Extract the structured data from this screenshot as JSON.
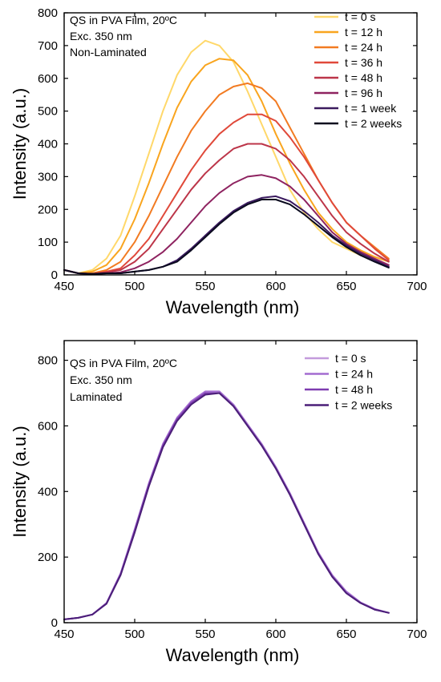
{
  "chart_data": [
    {
      "type": "line",
      "title": "",
      "xlabel": "Wavelength (nm)",
      "ylabel": "Intensity (a.u.)",
      "xlim": [
        450,
        700
      ],
      "ylim": [
        0,
        800
      ],
      "xticks": [
        "450",
        "500",
        "550",
        "600",
        "650",
        "700"
      ],
      "yticks": [
        "0",
        "100",
        "200",
        "300",
        "400",
        "500",
        "600",
        "700",
        "800"
      ],
      "annotations": [
        "QS in PVA Film, 20ºC",
        "Exc. 350 nm",
        "Non-Laminated"
      ],
      "legend_position": "top-right",
      "series": [
        {
          "name": "t = 0 s",
          "color": "#FFD86A",
          "x": [
            450,
            460,
            470,
            480,
            490,
            500,
            510,
            520,
            530,
            540,
            550,
            560,
            570,
            580,
            590,
            600,
            610,
            620,
            630,
            640,
            650,
            660,
            670,
            680
          ],
          "values": [
            15,
            5,
            15,
            50,
            120,
            240,
            370,
            500,
            610,
            680,
            715,
            700,
            650,
            560,
            460,
            360,
            260,
            190,
            140,
            100,
            80,
            60,
            45,
            30
          ]
        },
        {
          "name": "t = 12 h",
          "color": "#F9A51E",
          "x": [
            450,
            460,
            470,
            480,
            490,
            500,
            510,
            520,
            530,
            540,
            550,
            560,
            570,
            580,
            590,
            600,
            610,
            620,
            630,
            640,
            650,
            660,
            670,
            680
          ],
          "values": [
            15,
            5,
            10,
            30,
            80,
            170,
            280,
            400,
            510,
            590,
            640,
            660,
            655,
            610,
            530,
            430,
            340,
            260,
            190,
            140,
            100,
            75,
            55,
            40
          ]
        },
        {
          "name": "t = 24 h",
          "color": "#F27B22",
          "x": [
            450,
            460,
            470,
            480,
            490,
            500,
            510,
            520,
            530,
            540,
            550,
            560,
            570,
            580,
            590,
            600,
            610,
            620,
            630,
            640,
            650,
            660,
            670,
            680
          ],
          "values": [
            15,
            5,
            5,
            15,
            40,
            100,
            180,
            270,
            360,
            440,
            500,
            550,
            575,
            585,
            570,
            530,
            450,
            370,
            290,
            220,
            160,
            120,
            85,
            50
          ]
        },
        {
          "name": "t = 36 h",
          "color": "#E0493A",
          "x": [
            450,
            460,
            470,
            480,
            490,
            500,
            510,
            520,
            530,
            540,
            550,
            560,
            570,
            580,
            590,
            600,
            610,
            620,
            630,
            640,
            650,
            660,
            670,
            680
          ],
          "values": [
            15,
            5,
            3,
            10,
            20,
            60,
            110,
            180,
            250,
            320,
            380,
            430,
            465,
            490,
            490,
            470,
            420,
            360,
            290,
            220,
            160,
            120,
            80,
            45
          ]
        },
        {
          "name": "t = 48 h",
          "color": "#BC3549",
          "x": [
            450,
            460,
            470,
            480,
            490,
            500,
            510,
            520,
            530,
            540,
            550,
            560,
            570,
            580,
            590,
            600,
            610,
            620,
            630,
            640,
            650,
            660,
            670,
            680
          ],
          "values": [
            15,
            5,
            3,
            8,
            15,
            40,
            80,
            140,
            200,
            260,
            310,
            350,
            385,
            400,
            400,
            385,
            350,
            300,
            240,
            180,
            130,
            95,
            65,
            40
          ]
        },
        {
          "name": "t = 96 h",
          "color": "#8E2360",
          "x": [
            450,
            460,
            470,
            480,
            490,
            500,
            510,
            520,
            530,
            540,
            550,
            560,
            570,
            580,
            590,
            600,
            610,
            620,
            630,
            640,
            650,
            660,
            670,
            680
          ],
          "values": [
            15,
            5,
            3,
            5,
            8,
            20,
            40,
            70,
            110,
            160,
            210,
            250,
            280,
            300,
            305,
            295,
            270,
            230,
            180,
            130,
            95,
            70,
            50,
            30
          ]
        },
        {
          "name": "t = 1 week",
          "color": "#3A1A5E",
          "x": [
            450,
            460,
            470,
            480,
            490,
            500,
            510,
            520,
            530,
            540,
            550,
            560,
            570,
            580,
            590,
            600,
            610,
            620,
            630,
            640,
            650,
            660,
            670,
            680
          ],
          "values": [
            15,
            5,
            3,
            5,
            5,
            10,
            15,
            25,
            45,
            80,
            120,
            160,
            195,
            220,
            235,
            240,
            225,
            195,
            160,
            120,
            90,
            65,
            45,
            25
          ]
        },
        {
          "name": "t = 2 weeks",
          "color": "#0A0A1E",
          "x": [
            450,
            460,
            470,
            480,
            490,
            500,
            510,
            520,
            530,
            540,
            550,
            560,
            570,
            580,
            590,
            600,
            610,
            620,
            630,
            640,
            650,
            660,
            670,
            680
          ],
          "values": [
            15,
            5,
            3,
            5,
            5,
            10,
            15,
            25,
            40,
            75,
            115,
            155,
            190,
            215,
            230,
            230,
            215,
            185,
            150,
            115,
            85,
            60,
            40,
            22
          ]
        }
      ]
    },
    {
      "type": "line",
      "title": "",
      "xlabel": "Wavelength (nm)",
      "ylabel": "Intensity (a.u.)",
      "xlim": [
        450,
        700
      ],
      "ylim": [
        0,
        860
      ],
      "xticks": [
        "450",
        "500",
        "550",
        "600",
        "650",
        "700"
      ],
      "yticks": [
        "0",
        "200",
        "400",
        "600",
        "800"
      ],
      "annotations": [
        "QS in PVA Film, 20ºC",
        "Exc. 350 nm",
        "Laminated"
      ],
      "legend_position": "top-right",
      "series": [
        {
          "name": "t = 0 s",
          "color": "#C39BDC",
          "x": [
            450,
            460,
            470,
            480,
            490,
            500,
            510,
            520,
            530,
            540,
            550,
            560,
            570,
            580,
            590,
            600,
            610,
            620,
            630,
            640,
            650,
            660,
            670,
            680
          ],
          "values": [
            10,
            15,
            25,
            60,
            150,
            280,
            420,
            540,
            620,
            670,
            700,
            700,
            660,
            600,
            540,
            470,
            390,
            300,
            210,
            140,
            90,
            60,
            40,
            30
          ]
        },
        {
          "name": "t = 24 h",
          "color": "#A36CD0",
          "x": [
            450,
            460,
            470,
            480,
            490,
            500,
            510,
            520,
            530,
            540,
            550,
            560,
            570,
            580,
            590,
            600,
            610,
            620,
            630,
            640,
            650,
            660,
            670,
            680
          ],
          "values": [
            10,
            15,
            25,
            60,
            150,
            285,
            425,
            545,
            625,
            675,
            705,
            705,
            665,
            605,
            545,
            475,
            395,
            305,
            215,
            145,
            95,
            62,
            42,
            30
          ]
        },
        {
          "name": "t = 48 h",
          "color": "#7E3CB0",
          "x": [
            450,
            460,
            470,
            480,
            490,
            500,
            510,
            520,
            530,
            540,
            550,
            560,
            570,
            580,
            590,
            600,
            610,
            620,
            630,
            640,
            650,
            660,
            670,
            680
          ],
          "values": [
            10,
            15,
            25,
            58,
            148,
            280,
            420,
            540,
            620,
            670,
            700,
            700,
            660,
            600,
            540,
            470,
            390,
            300,
            210,
            140,
            90,
            60,
            40,
            30
          ]
        },
        {
          "name": "t = 2 weeks",
          "color": "#4B1F78",
          "x": [
            450,
            460,
            470,
            480,
            490,
            500,
            510,
            520,
            530,
            540,
            550,
            560,
            570,
            580,
            590,
            600,
            610,
            620,
            630,
            640,
            650,
            660,
            670,
            680
          ],
          "values": [
            10,
            15,
            25,
            58,
            145,
            275,
            415,
            535,
            615,
            665,
            695,
            700,
            660,
            600,
            540,
            470,
            390,
            300,
            210,
            140,
            90,
            60,
            40,
            30
          ]
        }
      ]
    }
  ]
}
